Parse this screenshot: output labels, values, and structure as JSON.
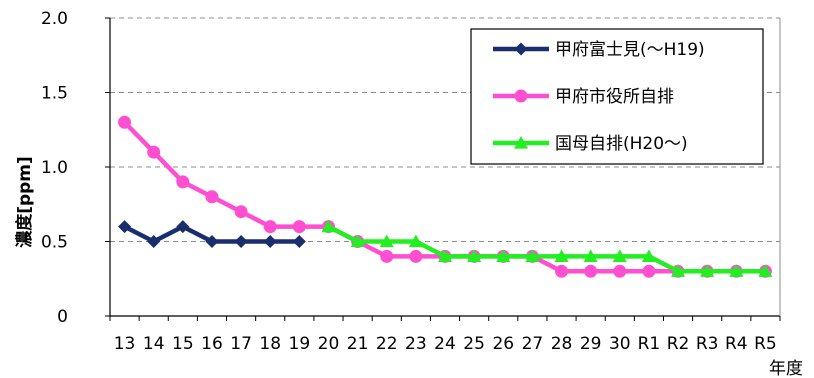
{
  "chart_data": {
    "type": "line",
    "ylabel": "濃度[ppm]",
    "xlabel": "年度",
    "ylim": [
      0,
      2.0
    ],
    "yticks": [
      "0",
      "0.5",
      "1.0",
      "1.5",
      "2.0"
    ],
    "grid": "horizontal-dashed",
    "legend_position": "top-right",
    "categories": [
      "13",
      "14",
      "15",
      "16",
      "17",
      "18",
      "19",
      "20",
      "21",
      "22",
      "23",
      "24",
      "25",
      "26",
      "27",
      "28",
      "29",
      "30",
      "R1",
      "R2",
      "R3",
      "R4",
      "R5"
    ],
    "series": [
      {
        "name": "甲府富士見(〜H19)",
        "color": "#1a2e6e",
        "marker": "diamond",
        "values": [
          0.6,
          0.5,
          0.6,
          0.5,
          0.5,
          0.5,
          0.5,
          null,
          null,
          null,
          null,
          null,
          null,
          null,
          null,
          null,
          null,
          null,
          null,
          null,
          null,
          null,
          null
        ]
      },
      {
        "name": "甲府市役所自排",
        "color": "#ff4fd1",
        "marker": "circle",
        "values": [
          1.3,
          1.1,
          0.9,
          0.8,
          0.7,
          0.6,
          0.6,
          0.6,
          0.5,
          0.4,
          0.4,
          0.4,
          0.4,
          0.4,
          0.4,
          0.3,
          0.3,
          0.3,
          0.3,
          0.3,
          0.3,
          0.3,
          0.3
        ]
      },
      {
        "name": "国母自排(H20〜)",
        "color": "#22ee22",
        "marker": "triangle",
        "values": [
          null,
          null,
          null,
          null,
          null,
          null,
          null,
          0.6,
          0.5,
          0.5,
          0.5,
          0.4,
          0.4,
          0.4,
          0.4,
          0.4,
          0.4,
          0.4,
          0.4,
          0.3,
          0.3,
          0.3,
          0.3
        ]
      }
    ]
  }
}
